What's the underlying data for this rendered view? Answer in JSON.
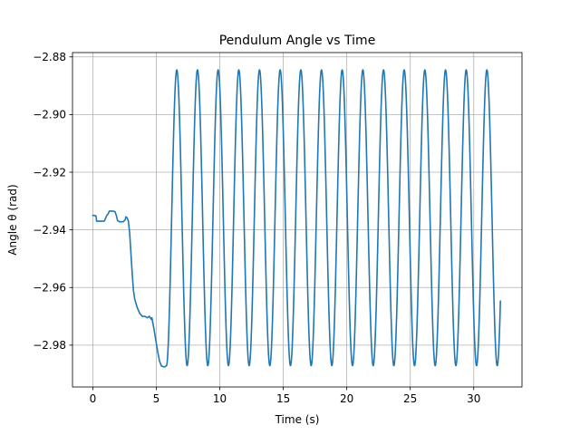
{
  "chart_data": {
    "type": "line",
    "title": "Pendulum Angle vs Time",
    "xlabel": "Time (s)",
    "ylabel": "Angle θ (rad)",
    "xlim": [
      -1.6,
      33.8
    ],
    "ylim": [
      -2.9945,
      -2.8785
    ],
    "x_ticks": [
      0,
      5,
      10,
      15,
      20,
      25,
      30
    ],
    "x_tick_labels": [
      "0",
      "5",
      "10",
      "15",
      "20",
      "25",
      "30"
    ],
    "y_ticks": [
      -2.88,
      -2.9,
      -2.92,
      -2.94,
      -2.96,
      -2.98
    ],
    "y_tick_labels": [
      "−2.88",
      "−2.90",
      "−2.92",
      "−2.94",
      "−2.96",
      "−2.98"
    ],
    "grid": true,
    "series": [
      {
        "color": "#1f77b4",
        "segments": [
          {
            "kind": "points",
            "points": [
              [
                0,
                -2.935
              ],
              [
                0.15,
                -2.935
              ],
              [
                0.25,
                -2.9352
              ],
              [
                0.3,
                -2.937
              ],
              [
                0.45,
                -2.937
              ],
              [
                0.6,
                -2.937
              ],
              [
                0.75,
                -2.937
              ],
              [
                0.9,
                -2.937
              ],
              [
                1.0,
                -2.936
              ],
              [
                1.1,
                -2.935
              ],
              [
                1.2,
                -2.9345
              ],
              [
                1.3,
                -2.9335
              ],
              [
                1.45,
                -2.9335
              ],
              [
                1.6,
                -2.9335
              ],
              [
                1.75,
                -2.9337
              ],
              [
                1.85,
                -2.935
              ],
              [
                1.95,
                -2.9368
              ],
              [
                2.1,
                -2.9372
              ],
              [
                2.25,
                -2.9372
              ],
              [
                2.4,
                -2.9372
              ],
              [
                2.55,
                -2.9365
              ],
              [
                2.6,
                -2.9355
              ],
              [
                2.7,
                -2.9358
              ],
              [
                2.8,
                -2.937
              ],
              [
                2.9,
                -2.941
              ],
              [
                3.0,
                -2.948
              ],
              [
                3.1,
                -2.955
              ],
              [
                3.2,
                -2.961
              ],
              [
                3.3,
                -2.964
              ],
              [
                3.5,
                -2.967
              ],
              [
                3.7,
                -2.969
              ],
              [
                3.9,
                -2.97
              ],
              [
                4.1,
                -2.97
              ],
              [
                4.3,
                -2.9705
              ],
              [
                4.45,
                -2.97
              ],
              [
                4.6,
                -2.971
              ],
              [
                4.65,
                -2.9705
              ],
              [
                4.8,
                -2.974
              ],
              [
                4.95,
                -2.978
              ],
              [
                5.1,
                -2.982
              ],
              [
                5.25,
                -2.9855
              ],
              [
                5.4,
                -2.9872
              ],
              [
                5.55,
                -2.9875
              ],
              [
                5.7,
                -2.9875
              ],
              [
                5.8,
                -2.987
              ]
            ]
          },
          {
            "kind": "oscillation",
            "from": 5.8,
            "to": 32.1,
            "center": -2.9358,
            "amplitude": 0.0513,
            "period": 1.628,
            "phase_at_from": 0
          }
        ]
      }
    ]
  }
}
